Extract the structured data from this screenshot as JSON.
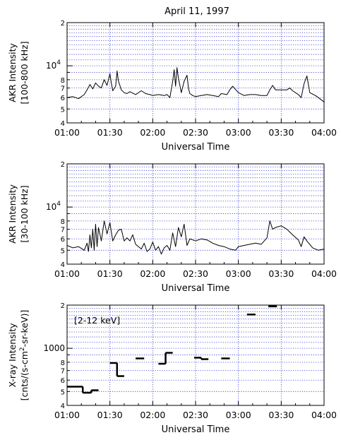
{
  "chart_data": [
    {
      "type": "line",
      "title": "April 11, 1997",
      "ylabel": [
        "AKR Intensity",
        "[100-800 kHz]"
      ],
      "xlabel": "Universal Time",
      "xlim": [
        "01:00",
        "04:00"
      ],
      "xticks": [
        "01:00",
        "01:30",
        "02:00",
        "02:30",
        "03:00",
        "03:30",
        "04:00"
      ],
      "yscale": "log",
      "ylim": [
        4000,
        20000
      ],
      "yticks": [
        "4",
        "5",
        "6",
        "7",
        "8",
        "10^4",
        "2"
      ],
      "grid": true,
      "series": [
        {
          "x": [
            "01:00",
            "01:04",
            "01:08",
            "01:12",
            "01:14",
            "01:16",
            "01:18",
            "01:20",
            "01:22",
            "01:24",
            "01:26",
            "01:28",
            "01:30",
            "01:31",
            "01:32",
            "01:34",
            "01:35",
            "01:36",
            "01:37",
            "01:38",
            "01:40",
            "01:42",
            "01:44",
            "01:48",
            "01:52",
            "01:55",
            "01:58",
            "02:00",
            "02:04",
            "02:08",
            "02:10",
            "02:12",
            "02:14",
            "02:15",
            "02:16",
            "02:17",
            "02:18",
            "02:19",
            "02:20",
            "02:22",
            "02:24",
            "02:25",
            "02:26",
            "02:28",
            "02:30",
            "02:34",
            "02:38",
            "02:42",
            "02:46",
            "02:48",
            "02:52",
            "02:54",
            "02:56",
            "03:00",
            "03:04",
            "03:08",
            "03:12",
            "03:16",
            "03:20",
            "03:22",
            "03:24",
            "03:26",
            "03:30",
            "03:34",
            "03:36",
            "03:38",
            "03:42",
            "03:44",
            "03:46",
            "03:48",
            "03:50",
            "03:54",
            "03:56",
            "04:00"
          ],
          "y": [
            6000,
            6100,
            5900,
            6300,
            6800,
            7400,
            6900,
            7600,
            7200,
            7000,
            8000,
            7300,
            8800,
            7600,
            6700,
            7200,
            9200,
            7800,
            7300,
            6800,
            6500,
            6400,
            6600,
            6300,
            6700,
            6400,
            6300,
            6200,
            6300,
            6200,
            6300,
            6000,
            7800,
            9400,
            7200,
            9700,
            8200,
            7300,
            6500,
            7800,
            8600,
            7000,
            6400,
            6200,
            6100,
            6200,
            6300,
            6200,
            6100,
            6400,
            6300,
            6800,
            7200,
            6500,
            6200,
            6300,
            6300,
            6200,
            6200,
            6800,
            7300,
            6800,
            6800,
            6800,
            7000,
            6700,
            6300,
            6000,
            7500,
            8500,
            6500,
            6200,
            6000,
            5600
          ]
        }
      ]
    },
    {
      "type": "line",
      "ylabel": [
        "AKR Intensity",
        "[30-100 kHz]"
      ],
      "xlabel": "Universal Time",
      "xlim": [
        "01:00",
        "04:00"
      ],
      "xticks": [
        "01:00",
        "01:30",
        "02:00",
        "02:30",
        "03:00",
        "03:30",
        "04:00"
      ],
      "yscale": "log",
      "ylim": [
        4000,
        20000
      ],
      "yticks": [
        "4",
        "5",
        "6",
        "7",
        "8",
        "10^4",
        "2"
      ],
      "grid": true,
      "series": [
        {
          "x": [
            "01:00",
            "01:04",
            "01:08",
            "01:12",
            "01:14",
            "01:15",
            "01:16",
            "01:17",
            "01:18",
            "01:19",
            "01:20",
            "01:21",
            "01:22",
            "01:24",
            "01:26",
            "01:28",
            "01:30",
            "01:32",
            "01:34",
            "01:36",
            "01:38",
            "01:40",
            "01:42",
            "01:44",
            "01:46",
            "01:48",
            "01:50",
            "01:52",
            "01:54",
            "01:56",
            "01:58",
            "02:00",
            "02:02",
            "02:04",
            "02:06",
            "02:08",
            "02:10",
            "02:12",
            "02:14",
            "02:16",
            "02:18",
            "02:20",
            "02:22",
            "02:24",
            "02:26",
            "02:28",
            "02:30",
            "02:34",
            "02:38",
            "02:42",
            "02:46",
            "02:50",
            "02:54",
            "02:58",
            "03:00",
            "03:04",
            "03:08",
            "03:12",
            "03:16",
            "03:20",
            "03:22",
            "03:24",
            "03:26",
            "03:30",
            "03:34",
            "03:38",
            "03:42",
            "03:44",
            "03:46",
            "03:48",
            "03:52",
            "03:56",
            "04:00"
          ],
          "y": [
            5400,
            5200,
            5300,
            5000,
            5600,
            4900,
            6400,
            5200,
            7000,
            5000,
            7600,
            5300,
            7200,
            5800,
            8000,
            6500,
            7800,
            5800,
            6400,
            6900,
            7000,
            5800,
            6100,
            5800,
            6400,
            5500,
            5300,
            5100,
            5600,
            4900,
            5100,
            5700,
            5000,
            5300,
            4700,
            5200,
            5400,
            5000,
            6600,
            5300,
            7200,
            6200,
            7600,
            5400,
            6000,
            5900,
            5800,
            6000,
            5900,
            5600,
            5400,
            5300,
            5100,
            5000,
            5300,
            5400,
            5500,
            5600,
            5500,
            6100,
            8000,
            7000,
            7200,
            7400,
            7000,
            6400,
            5900,
            5300,
            6200,
            5800,
            5200,
            5000,
            5100
          ]
        }
      ]
    },
    {
      "type": "step",
      "ylabel": [
        "X-ray Intensity",
        "[cnts/(s-cm^2-sr-keV)]"
      ],
      "xlabel": "Universal Time",
      "xlim": [
        "01:00",
        "04:00"
      ],
      "xticks": [
        "01:00",
        "01:30",
        "02:00",
        "02:30",
        "03:00",
        "03:30",
        "04:00"
      ],
      "yscale": "log",
      "ylim": [
        400,
        2000
      ],
      "yticks": [
        "4",
        "5",
        "6",
        "7",
        "8",
        "1000",
        "2"
      ],
      "grid": true,
      "annotation": "[2-12 keV]",
      "segments": [
        {
          "start": "01:00",
          "end": "01:11",
          "value": 540
        },
        {
          "start": "01:11",
          "end": "01:17",
          "value": 490
        },
        {
          "start": "01:17",
          "end": "01:22",
          "value": 510
        },
        {
          "start": "01:30",
          "end": "01:35",
          "value": 790
        },
        {
          "start": "01:35",
          "end": "01:40",
          "value": 640
        },
        {
          "start": "01:48",
          "end": "01:54",
          "value": 850
        },
        {
          "start": "02:04",
          "end": "02:09",
          "value": 780
        },
        {
          "start": "02:09",
          "end": "02:14",
          "value": 930
        },
        {
          "start": "02:29",
          "end": "02:34",
          "value": 860
        },
        {
          "start": "02:34",
          "end": "02:39",
          "value": 840
        },
        {
          "start": "02:48",
          "end": "02:54",
          "value": 850
        },
        {
          "start": "03:06",
          "end": "03:12",
          "value": 1720
        },
        {
          "start": "03:21",
          "end": "03:27",
          "value": 1960
        }
      ]
    }
  ]
}
